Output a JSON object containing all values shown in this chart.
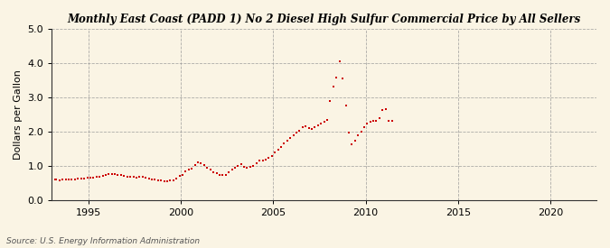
{
  "title": "Monthly East Coast (PADD 1) No 2 Diesel High Sulfur Commercial Price by All Sellers",
  "ylabel": "Dollars per Gallon",
  "source": "Source: U.S. Energy Information Administration",
  "background_color": "#faf4e4",
  "marker_color": "#cc0000",
  "xlim": [
    1993.0,
    2022.5
  ],
  "ylim": [
    0.0,
    5.0
  ],
  "yticks": [
    0.0,
    1.0,
    2.0,
    3.0,
    4.0,
    5.0
  ],
  "xticks": [
    1995,
    2000,
    2005,
    2010,
    2015,
    2020
  ],
  "data": [
    [
      1993.17,
      0.6
    ],
    [
      1993.25,
      0.59
    ],
    [
      1993.42,
      0.58
    ],
    [
      1993.58,
      0.59
    ],
    [
      1993.75,
      0.6
    ],
    [
      1993.92,
      0.61
    ],
    [
      1994.08,
      0.6
    ],
    [
      1994.25,
      0.61
    ],
    [
      1994.42,
      0.62
    ],
    [
      1994.58,
      0.62
    ],
    [
      1994.75,
      0.63
    ],
    [
      1994.92,
      0.64
    ],
    [
      1995.08,
      0.64
    ],
    [
      1995.25,
      0.65
    ],
    [
      1995.42,
      0.67
    ],
    [
      1995.58,
      0.68
    ],
    [
      1995.75,
      0.7
    ],
    [
      1995.92,
      0.72
    ],
    [
      1996.08,
      0.76
    ],
    [
      1996.25,
      0.76
    ],
    [
      1996.42,
      0.75
    ],
    [
      1996.58,
      0.74
    ],
    [
      1996.75,
      0.72
    ],
    [
      1996.92,
      0.7
    ],
    [
      1997.08,
      0.69
    ],
    [
      1997.25,
      0.68
    ],
    [
      1997.42,
      0.67
    ],
    [
      1997.58,
      0.66
    ],
    [
      1997.75,
      0.67
    ],
    [
      1997.92,
      0.68
    ],
    [
      1998.08,
      0.65
    ],
    [
      1998.25,
      0.63
    ],
    [
      1998.42,
      0.61
    ],
    [
      1998.58,
      0.59
    ],
    [
      1998.75,
      0.57
    ],
    [
      1998.92,
      0.56
    ],
    [
      1999.08,
      0.55
    ],
    [
      1999.25,
      0.55
    ],
    [
      1999.42,
      0.56
    ],
    [
      1999.58,
      0.57
    ],
    [
      1999.75,
      0.63
    ],
    [
      1999.92,
      0.7
    ],
    [
      2000.08,
      0.73
    ],
    [
      2000.25,
      0.83
    ],
    [
      2000.42,
      0.88
    ],
    [
      2000.58,
      0.92
    ],
    [
      2000.75,
      1.02
    ],
    [
      2000.92,
      1.1
    ],
    [
      2001.08,
      1.08
    ],
    [
      2001.25,
      1.02
    ],
    [
      2001.42,
      0.94
    ],
    [
      2001.58,
      0.88
    ],
    [
      2001.75,
      0.82
    ],
    [
      2001.92,
      0.77
    ],
    [
      2002.08,
      0.73
    ],
    [
      2002.25,
      0.72
    ],
    [
      2002.42,
      0.74
    ],
    [
      2002.58,
      0.82
    ],
    [
      2002.75,
      0.9
    ],
    [
      2002.92,
      0.95
    ],
    [
      2003.08,
      1.0
    ],
    [
      2003.25,
      1.05
    ],
    [
      2003.42,
      0.98
    ],
    [
      2003.58,
      0.94
    ],
    [
      2003.75,
      0.96
    ],
    [
      2003.92,
      1.0
    ],
    [
      2004.08,
      1.08
    ],
    [
      2004.25,
      1.14
    ],
    [
      2004.42,
      1.16
    ],
    [
      2004.58,
      1.19
    ],
    [
      2004.75,
      1.23
    ],
    [
      2004.92,
      1.28
    ],
    [
      2005.08,
      1.38
    ],
    [
      2005.25,
      1.47
    ],
    [
      2005.42,
      1.55
    ],
    [
      2005.58,
      1.65
    ],
    [
      2005.75,
      1.72
    ],
    [
      2005.92,
      1.8
    ],
    [
      2006.08,
      1.88
    ],
    [
      2006.25,
      1.98
    ],
    [
      2006.42,
      2.02
    ],
    [
      2006.58,
      2.12
    ],
    [
      2006.75,
      2.15
    ],
    [
      2006.92,
      2.1
    ],
    [
      2007.08,
      2.08
    ],
    [
      2007.25,
      2.12
    ],
    [
      2007.42,
      2.18
    ],
    [
      2007.58,
      2.22
    ],
    [
      2007.75,
      2.28
    ],
    [
      2007.92,
      2.35
    ],
    [
      2008.08,
      2.9
    ],
    [
      2008.25,
      3.3
    ],
    [
      2008.42,
      3.58
    ],
    [
      2008.58,
      4.05
    ],
    [
      2008.75,
      3.55
    ],
    [
      2008.92,
      2.76
    ],
    [
      2009.08,
      1.98
    ],
    [
      2009.25,
      1.63
    ],
    [
      2009.42,
      1.72
    ],
    [
      2009.58,
      1.88
    ],
    [
      2009.75,
      1.99
    ],
    [
      2009.92,
      2.12
    ],
    [
      2010.08,
      2.22
    ],
    [
      2010.25,
      2.28
    ],
    [
      2010.42,
      2.3
    ],
    [
      2010.58,
      2.32
    ],
    [
      2010.75,
      2.38
    ],
    [
      2010.92,
      2.62
    ],
    [
      2011.08,
      2.65
    ],
    [
      2011.25,
      2.32
    ],
    [
      2011.42,
      2.3
    ]
  ]
}
